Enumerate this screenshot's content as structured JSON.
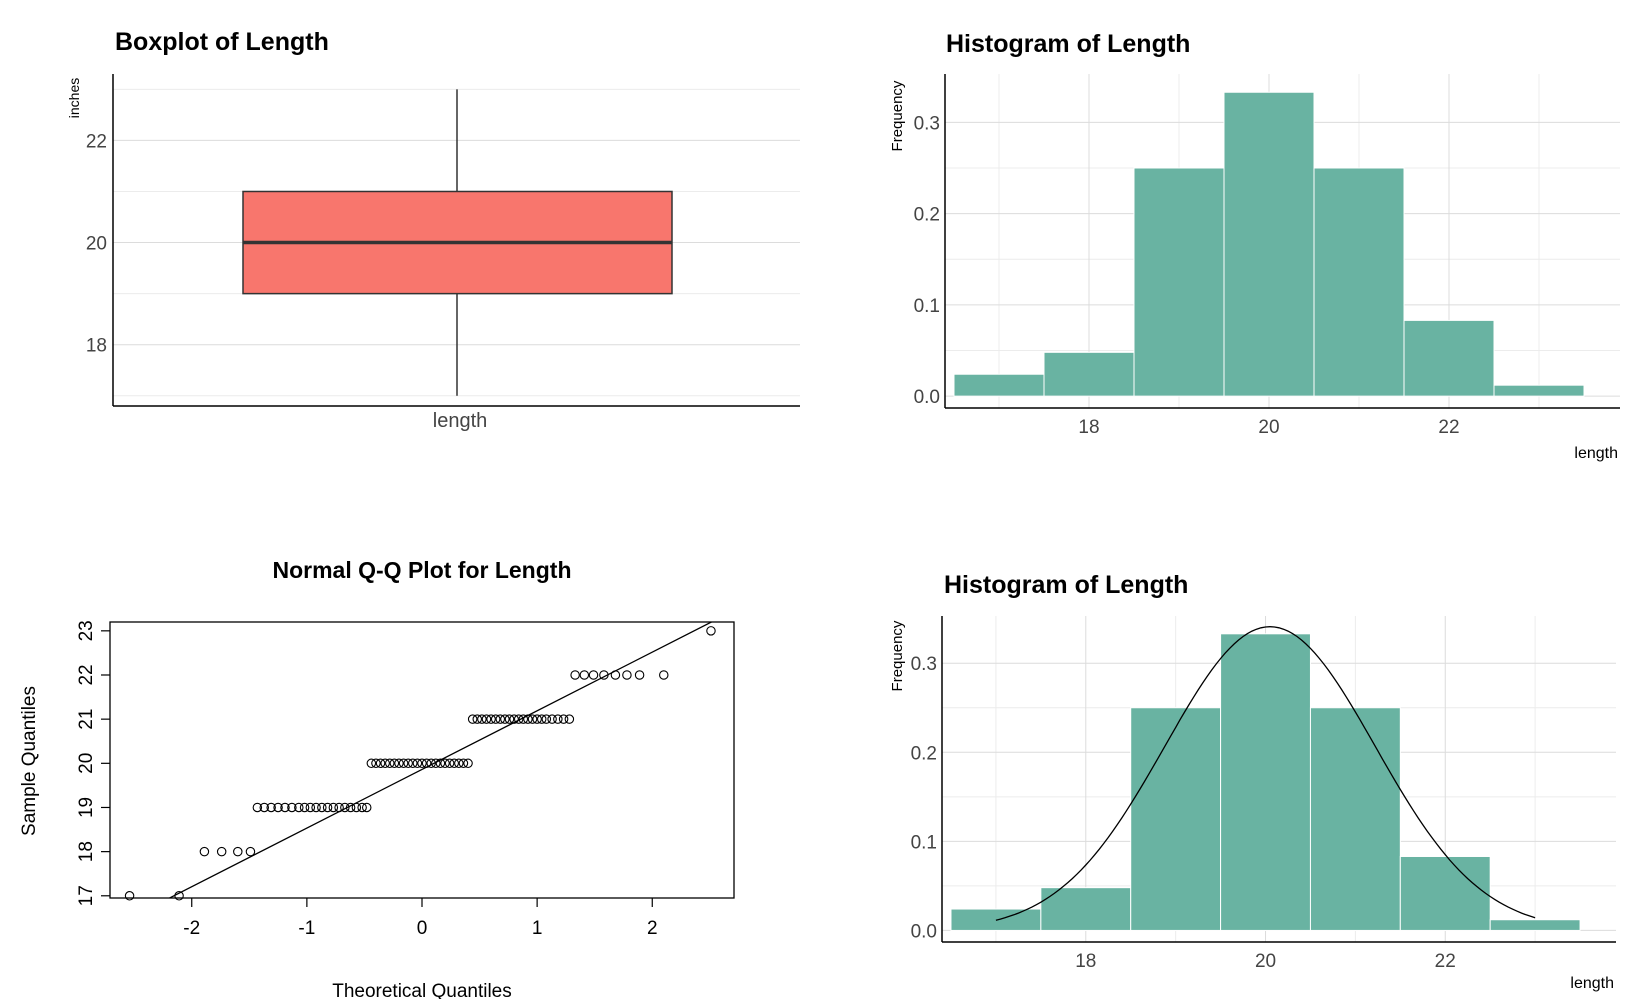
{
  "chart_data": [
    {
      "type": "boxplot",
      "title": "Boxplot of Length",
      "ylabel": "inches",
      "xlabel": "",
      "categories": [
        "length"
      ],
      "ylim": [
        16.8,
        23.3
      ],
      "yticks": [
        18,
        20,
        22
      ],
      "stats": {
        "min": 17,
        "q1": 19,
        "median": 20,
        "q3": 21,
        "max": 23
      },
      "color": "#F8766D",
      "grid": true
    },
    {
      "type": "bar",
      "title": "Histogram of Length",
      "xlabel": "length",
      "ylabel": "Frequency",
      "x": [
        17,
        18,
        19,
        20,
        21,
        22,
        23
      ],
      "values": [
        0.024,
        0.048,
        0.25,
        0.333,
        0.25,
        0.083,
        0.012
      ],
      "xlim": [
        16.4,
        23.9
      ],
      "ylim": [
        -0.013,
        0.353
      ],
      "xticks": [
        18,
        20,
        22
      ],
      "yticks": [
        0.0,
        0.1,
        0.2,
        0.3
      ],
      "yticklabels": [
        "0.0",
        "0.1",
        "0.2",
        "0.3"
      ],
      "color": "#69B3A2",
      "grid": true
    },
    {
      "type": "scatter",
      "title": "Normal Q-Q Plot for Length",
      "xlabel": "Theoretical Quantiles",
      "ylabel": "Sample Quantiles",
      "xlim": [
        -2.71,
        2.71
      ],
      "ylim": [
        16.95,
        23.2
      ],
      "xticks": [
        -2,
        -1,
        0,
        1,
        2
      ],
      "yticks": [
        17,
        18,
        19,
        20,
        21,
        22,
        23
      ],
      "groups": [
        {
          "y": 17,
          "x": [
            -2.54,
            -2.11
          ]
        },
        {
          "y": 18,
          "x": [
            -1.89,
            -1.74,
            -1.6,
            -1.49
          ]
        },
        {
          "y": 19,
          "x": [
            -1.43,
            -1.37,
            -1.31,
            -1.25,
            -1.19,
            -1.13,
            -1.07,
            -1.02,
            -0.97,
            -0.92,
            -0.87,
            -0.82,
            -0.77,
            -0.72,
            -0.67,
            -0.62,
            -0.57,
            -0.52,
            -0.48
          ]
        },
        {
          "y": 20,
          "x": [
            -0.44,
            -0.4,
            -0.36,
            -0.32,
            -0.28,
            -0.24,
            -0.2,
            -0.16,
            -0.12,
            -0.08,
            -0.04,
            0.0,
            0.04,
            0.08,
            0.12,
            0.16,
            0.2,
            0.24,
            0.28,
            0.32,
            0.36,
            0.4
          ]
        },
        {
          "y": 21,
          "x": [
            0.44,
            0.48,
            0.52,
            0.56,
            0.6,
            0.64,
            0.68,
            0.72,
            0.76,
            0.8,
            0.84,
            0.88,
            0.92,
            0.96,
            1.0,
            1.04,
            1.08,
            1.13,
            1.18,
            1.23,
            1.28
          ]
        },
        {
          "y": 22,
          "x": [
            1.33,
            1.41,
            1.49,
            1.58,
            1.68,
            1.78,
            1.89,
            2.1
          ]
        },
        {
          "y": 23,
          "x": [
            2.51
          ]
        }
      ],
      "qqline": {
        "x1": -2.2,
        "y1": 16.94,
        "x2": 2.71,
        "y2": 23.46
      }
    },
    {
      "type": "bar",
      "title": "Histogram of Length",
      "xlabel": "length",
      "ylabel": "Frequency",
      "x": [
        17,
        18,
        19,
        20,
        21,
        22,
        23
      ],
      "values": [
        0.024,
        0.048,
        0.25,
        0.333,
        0.25,
        0.083,
        0.012
      ],
      "xlim": [
        16.4,
        23.9
      ],
      "ylim": [
        -0.013,
        0.353
      ],
      "xticks": [
        18,
        20,
        22
      ],
      "yticks": [
        0.0,
        0.1,
        0.2,
        0.3
      ],
      "yticklabels": [
        "0.0",
        "0.1",
        "0.2",
        "0.3"
      ],
      "color": "#69B3A2",
      "grid": true,
      "density_curve": {
        "mean": 20.05,
        "sd": 1.17,
        "range": [
          17,
          23
        ]
      }
    }
  ]
}
